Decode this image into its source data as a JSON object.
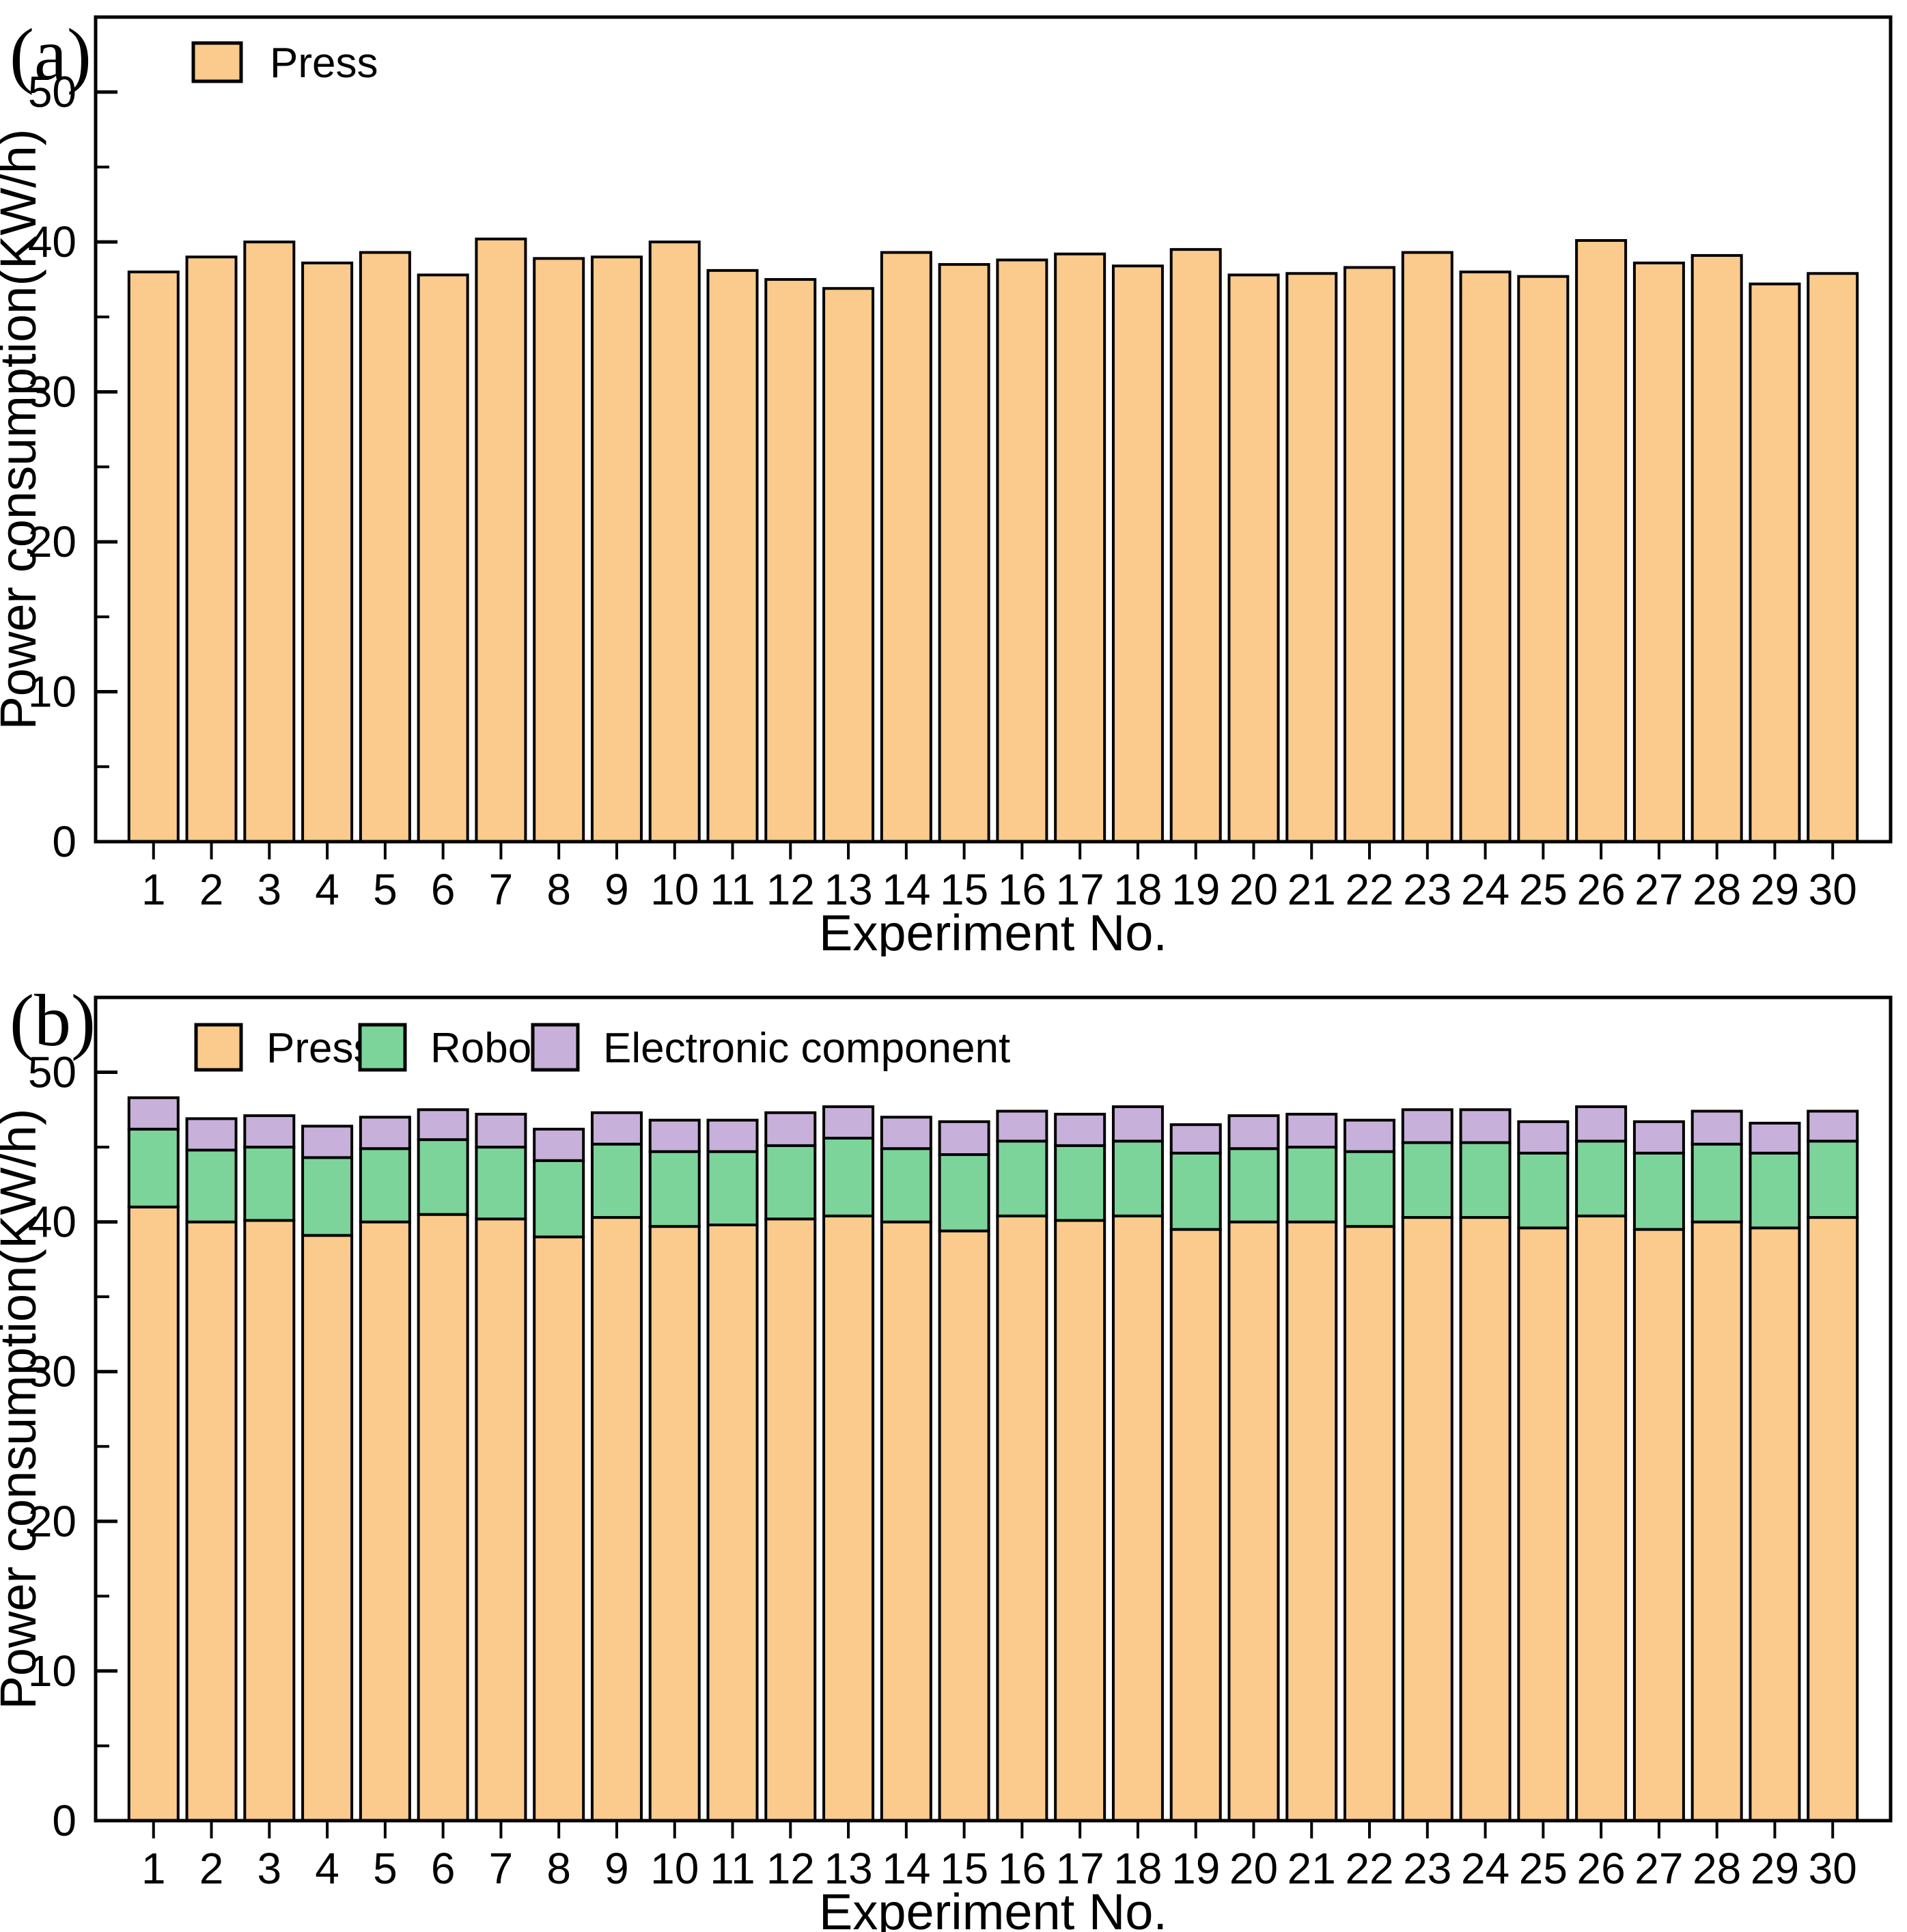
{
  "figure_title": "",
  "colors": {
    "press": "#FBCA8D",
    "robot": "#7CD49A",
    "electronic": "#C7B0D9",
    "bar_edge": "#000000",
    "axis": "#000000",
    "background": "#FFFFFF"
  },
  "chart_data": [
    {
      "id": "a",
      "type": "bar",
      "stacked": false,
      "panel_label": "(a)",
      "xlabel": "Experiment No.",
      "ylabel": "Power consumption(KW/h)",
      "ylim": [
        0,
        55
      ],
      "yticks_major": [
        0,
        10,
        20,
        30,
        40,
        50
      ],
      "yticks_minor": [
        5,
        15,
        25,
        35,
        45
      ],
      "grid": false,
      "legend_position": "top-left-inside",
      "categories": [
        1,
        2,
        3,
        4,
        5,
        6,
        7,
        8,
        9,
        10,
        11,
        12,
        13,
        14,
        15,
        16,
        17,
        18,
        19,
        20,
        21,
        22,
        23,
        24,
        25,
        26,
        27,
        28,
        29,
        30
      ],
      "series": [
        {
          "name": "Press",
          "color_key": "press",
          "values": [
            38.0,
            39.0,
            40.0,
            38.6,
            39.3,
            37.8,
            40.2,
            38.9,
            39.0,
            40.0,
            38.1,
            37.5,
            36.9,
            39.3,
            38.5,
            38.8,
            39.2,
            38.4,
            39.5,
            37.8,
            37.9,
            38.3,
            39.3,
            38.0,
            37.7,
            40.1,
            38.6,
            39.1,
            37.2,
            37.9
          ]
        }
      ]
    },
    {
      "id": "b",
      "type": "bar",
      "stacked": true,
      "panel_label": "(b)",
      "xlabel": "Experiment No.",
      "ylabel": "Power consumption(KW/h)",
      "ylim": [
        0,
        55
      ],
      "yticks_major": [
        0,
        10,
        20,
        30,
        40,
        50
      ],
      "yticks_minor": [
        5,
        15,
        25,
        35,
        45
      ],
      "grid": false,
      "legend_position": "top-left-inside",
      "categories": [
        1,
        2,
        3,
        4,
        5,
        6,
        7,
        8,
        9,
        10,
        11,
        12,
        13,
        14,
        15,
        16,
        17,
        18,
        19,
        20,
        21,
        22,
        23,
        24,
        25,
        26,
        27,
        28,
        29,
        30
      ],
      "series": [
        {
          "name": "Press",
          "color_key": "press",
          "values": [
            41.0,
            40.0,
            40.1,
            39.1,
            40.0,
            40.5,
            40.2,
            39.0,
            40.3,
            39.7,
            39.8,
            40.2,
            40.4,
            40.0,
            39.4,
            40.4,
            40.1,
            40.4,
            39.5,
            40.0,
            40.0,
            39.7,
            40.3,
            40.3,
            39.6,
            40.4,
            39.5,
            40.0,
            39.6,
            40.3
          ]
        },
        {
          "name": "Robot",
          "color_key": "robot",
          "values": [
            5.2,
            4.8,
            4.9,
            5.2,
            4.9,
            5.0,
            4.8,
            5.1,
            4.9,
            5.0,
            4.9,
            4.9,
            5.2,
            4.9,
            5.1,
            5.0,
            5.0,
            5.0,
            5.1,
            4.9,
            5.0,
            5.0,
            5.0,
            5.0,
            5.0,
            5.0,
            5.1,
            5.2,
            5.0,
            5.1
          ]
        },
        {
          "name": "Electronic component",
          "color_key": "electronic",
          "values": [
            2.1,
            2.1,
            2.1,
            2.1,
            2.1,
            2.0,
            2.2,
            2.1,
            2.1,
            2.1,
            2.1,
            2.2,
            2.1,
            2.1,
            2.2,
            2.0,
            2.1,
            2.3,
            1.9,
            2.2,
            2.2,
            2.1,
            2.2,
            2.2,
            2.1,
            2.3,
            2.1,
            2.2,
            2.0,
            2.0
          ]
        }
      ]
    }
  ]
}
